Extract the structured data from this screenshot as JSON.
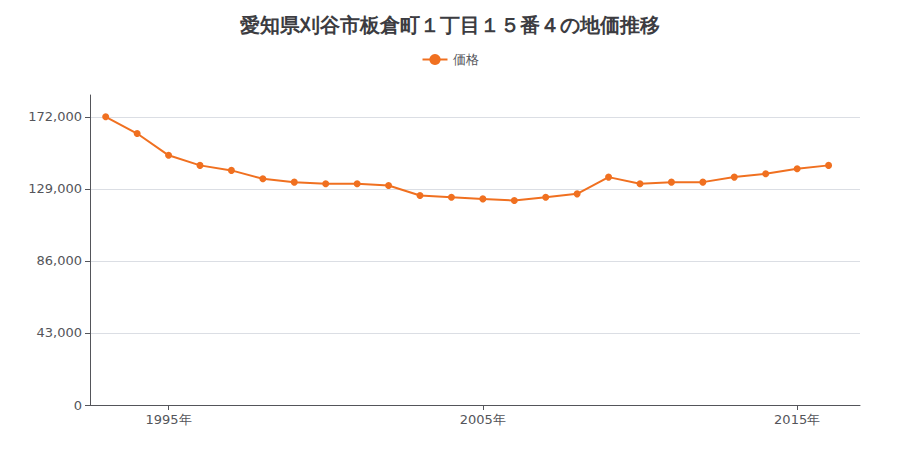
{
  "chart_data": {
    "type": "line",
    "title": "愛知県刈谷市板倉町１丁目１５番４の地価推移",
    "x": [
      1993,
      1994,
      1995,
      1996,
      1997,
      1998,
      1999,
      2000,
      2001,
      2002,
      2003,
      2004,
      2005,
      2006,
      2007,
      2008,
      2009,
      2010,
      2011,
      2012,
      2013,
      2014,
      2015,
      2016
    ],
    "series": [
      {
        "name": "価格",
        "color": "#f07020",
        "marker": "circle",
        "values": [
          172000,
          162000,
          149000,
          143000,
          140000,
          135000,
          133000,
          132000,
          132000,
          131000,
          125000,
          124000,
          123000,
          122000,
          124000,
          126000,
          136000,
          132000,
          133000,
          133000,
          136000,
          138000,
          141000,
          143000
        ]
      }
    ],
    "xlim": [
      1992.5,
      2017
    ],
    "xticks": [
      {
        "value": 1995,
        "label": "1995年"
      },
      {
        "value": 2005,
        "label": "2005年"
      },
      {
        "value": 2015,
        "label": "2015年"
      }
    ],
    "ylim": [
      0,
      185000
    ],
    "yticks": [
      0,
      {
        "value": 43000,
        "label": "43,000"
      },
      {
        "value": 86000,
        "label": "86,000"
      },
      {
        "value": 129000,
        "label": "129,000"
      },
      {
        "value": 172000,
        "label": "172,000"
      }
    ],
    "grid": true,
    "legend": "top"
  }
}
